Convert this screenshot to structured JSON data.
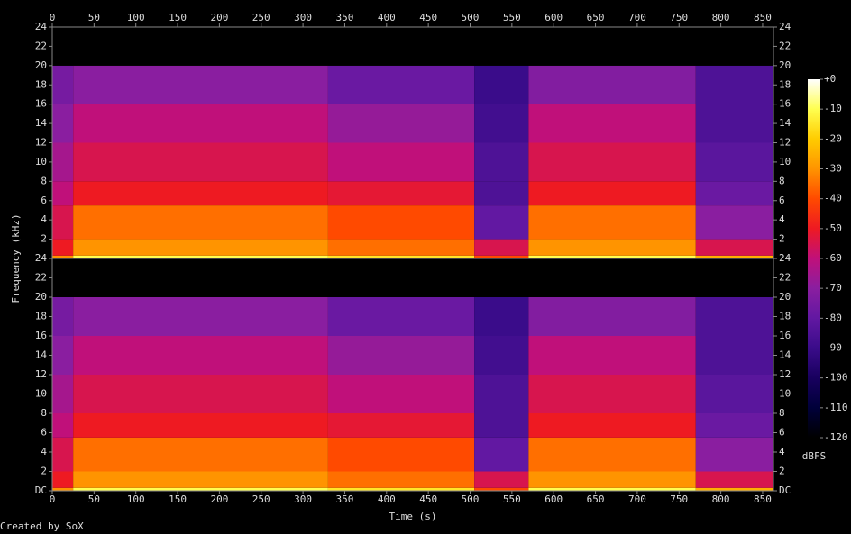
{
  "chart_data": {
    "type": "spectrogram",
    "xlabel": "Time (s)",
    "ylabel": "Frequency (kHz)",
    "footer": "Created by SoX",
    "xlim": [
      0,
      863
    ],
    "xticks": [
      0,
      50,
      100,
      150,
      200,
      250,
      300,
      350,
      400,
      450,
      500,
      550,
      600,
      650,
      700,
      750,
      800,
      850
    ],
    "ylim": [
      0,
      24
    ],
    "time_edges": [
      0,
      25,
      330,
      505,
      570,
      770,
      863
    ],
    "freq_edges": [
      0,
      0.3,
      2,
      5.5,
      8,
      12,
      16,
      20,
      24
    ],
    "channels": [
      {
        "yticks": [
          2,
          4,
          6,
          8,
          10,
          12,
          14,
          16,
          18,
          20,
          22,
          24
        ],
        "z": [
          [
            -30,
            -10,
            -15,
            -40,
            -10,
            -25
          ],
          [
            -50,
            -30,
            -35,
            -55,
            -30,
            -55
          ],
          [
            -55,
            -35,
            -40,
            -80,
            -35,
            -70
          ],
          [
            -60,
            -50,
            -52,
            -85,
            -50,
            -78
          ],
          [
            -65,
            -55,
            -60,
            -85,
            -55,
            -82
          ],
          [
            -70,
            -60,
            -68,
            -88,
            -60,
            -85
          ],
          [
            -75,
            -70,
            -78,
            -90,
            -72,
            -85
          ],
          [
            -120,
            -120,
            -120,
            -120,
            -120,
            -120
          ]
        ]
      },
      {
        "yticks": [
          {
            "value": 0,
            "label": "DC"
          },
          2,
          4,
          6,
          8,
          10,
          12,
          14,
          16,
          18,
          20,
          22,
          24
        ],
        "z": [
          [
            -30,
            -10,
            -15,
            -40,
            -10,
            -25
          ],
          [
            -50,
            -30,
            -35,
            -55,
            -30,
            -55
          ],
          [
            -55,
            -35,
            -40,
            -80,
            -35,
            -70
          ],
          [
            -60,
            -50,
            -52,
            -85,
            -50,
            -78
          ],
          [
            -65,
            -55,
            -60,
            -85,
            -55,
            -82
          ],
          [
            -70,
            -60,
            -68,
            -88,
            -60,
            -85
          ],
          [
            -75,
            -70,
            -78,
            -90,
            -72,
            -85
          ],
          [
            -120,
            -120,
            -120,
            -120,
            -120,
            -120
          ]
        ]
      }
    ],
    "colorbar_label": "dBFS",
    "clim": [
      -120,
      0
    ],
    "colormap": [
      "#000000",
      "#00003a",
      "#18005e",
      "#3a0c8a",
      "#6218a2",
      "#8a1ea0",
      "#c0107a",
      "#ee1a22",
      "#ff4a00",
      "#ff9400",
      "#ffcc00",
      "#ffff50",
      "#ffffff"
    ],
    "colorbar_ticks": [
      {
        "value": 0,
        "label": "+0"
      },
      -10,
      -20,
      -30,
      -40,
      -50,
      -60,
      -70,
      -80,
      -90,
      -100,
      -110,
      -120
    ]
  }
}
